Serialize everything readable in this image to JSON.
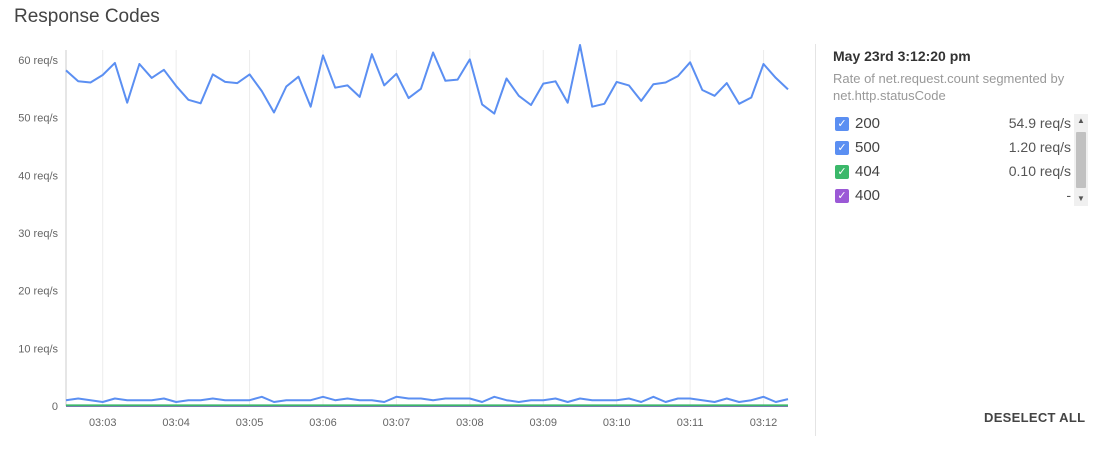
{
  "panel": {
    "title": "Response Codes",
    "deselect_label": "DESELECT ALL"
  },
  "legend": {
    "timestamp": "May 23rd 3:12:20 pm",
    "subtitle": "Rate of net.request.count segmented by net.http.statusCode",
    "items": [
      {
        "label": "200",
        "value": "54.9 req/s",
        "color": "#5b8ff2",
        "checked": true
      },
      {
        "label": "500",
        "value": "1.20 req/s",
        "color": "#5b8ff2",
        "checked": true
      },
      {
        "label": "404",
        "value": "0.10 req/s",
        "color": "#3bb86a",
        "checked": true
      },
      {
        "label": "400",
        "value": "-",
        "color": "#9b59d6",
        "checked": true
      }
    ],
    "scroll_up_icon": "triangle-up-icon",
    "scroll_down_icon": "triangle-down-icon"
  },
  "chart_data": {
    "type": "line",
    "title": "Response Codes",
    "xlabel": "",
    "ylabel": "",
    "ylim": [
      0,
      60
    ],
    "yticks": [
      0,
      10,
      20,
      30,
      40,
      50,
      60
    ],
    "ytick_labels": [
      "0",
      "10 req/s",
      "20 req/s",
      "30 req/s",
      "40 req/s",
      "50 req/s",
      "60 req/s"
    ],
    "xlim": [
      "03:02:30",
      "03:12:20"
    ],
    "xtick_labels": [
      "03:03",
      "03:04",
      "03:05",
      "03:06",
      "03:07",
      "03:08",
      "03:09",
      "03:10",
      "03:11",
      "03:12"
    ],
    "xtick_times": [
      "03:03:00",
      "03:04:00",
      "03:05:00",
      "03:06:00",
      "03:07:00",
      "03:08:00",
      "03:09:00",
      "03:10:00",
      "03:11:00",
      "03:12:00"
    ],
    "x": [
      "03:02:30",
      "03:02:40",
      "03:02:50",
      "03:03:00",
      "03:03:10",
      "03:03:20",
      "03:03:30",
      "03:03:40",
      "03:03:50",
      "03:04:00",
      "03:04:10",
      "03:04:20",
      "03:04:30",
      "03:04:40",
      "03:04:50",
      "03:05:00",
      "03:05:10",
      "03:05:20",
      "03:05:30",
      "03:05:40",
      "03:05:50",
      "03:06:00",
      "03:06:10",
      "03:06:20",
      "03:06:30",
      "03:06:40",
      "03:06:50",
      "03:07:00",
      "03:07:10",
      "03:07:20",
      "03:07:30",
      "03:07:40",
      "03:07:50",
      "03:08:00",
      "03:08:10",
      "03:08:20",
      "03:08:30",
      "03:08:40",
      "03:08:50",
      "03:09:00",
      "03:09:10",
      "03:09:20",
      "03:09:30",
      "03:09:40",
      "03:09:50",
      "03:10:00",
      "03:10:10",
      "03:10:20",
      "03:10:30",
      "03:10:40",
      "03:10:50",
      "03:11:00",
      "03:11:10",
      "03:11:20",
      "03:11:30",
      "03:11:40",
      "03:11:50",
      "03:12:00",
      "03:12:10",
      "03:12:20"
    ],
    "series": [
      {
        "name": "200",
        "color": "#5b8ff2",
        "values": [
          58.2,
          56.3,
          56.1,
          57.4,
          59.5,
          52.6,
          59.3,
          56.9,
          58.3,
          55.5,
          53.1,
          52.5,
          57.5,
          56.2,
          56.0,
          57.5,
          54.6,
          50.9,
          55.4,
          57.1,
          51.9,
          60.8,
          55.2,
          55.6,
          53.6,
          61.0,
          55.6,
          57.6,
          53.4,
          55.0,
          61.3,
          56.4,
          56.6,
          60.1,
          52.3,
          50.7,
          56.8,
          53.8,
          52.2,
          55.9,
          56.3,
          52.6,
          62.6,
          51.9,
          52.4,
          56.2,
          55.6,
          52.9,
          55.8,
          56.1,
          57.2,
          59.6,
          54.8,
          53.8,
          56.0,
          52.4,
          53.5,
          59.3,
          56.9,
          54.9
        ]
      },
      {
        "name": "500",
        "color": "#5b8ff2",
        "values": [
          1.0,
          1.3,
          1.0,
          0.7,
          1.3,
          1.0,
          1.0,
          1.0,
          1.3,
          0.7,
          1.0,
          1.0,
          1.3,
          1.0,
          1.0,
          1.0,
          1.6,
          0.7,
          1.0,
          1.0,
          1.0,
          1.6,
          1.0,
          1.3,
          1.0,
          1.0,
          0.7,
          1.6,
          1.3,
          1.3,
          1.0,
          1.3,
          1.3,
          1.3,
          0.7,
          1.6,
          1.0,
          0.7,
          1.0,
          1.0,
          1.3,
          0.7,
          1.3,
          1.0,
          1.0,
          1.0,
          1.3,
          0.7,
          1.6,
          0.7,
          1.3,
          1.3,
          1.0,
          0.7,
          1.3,
          0.7,
          1.0,
          1.6,
          0.7,
          1.2
        ]
      },
      {
        "name": "404",
        "color": "#3bb86a",
        "values": [
          0.1,
          0.1,
          0.1,
          0.1,
          0.1,
          0.1,
          0.1,
          0.1,
          0.1,
          0.1,
          0.1,
          0.1,
          0.1,
          0.1,
          0.1,
          0.1,
          0.1,
          0.1,
          0.1,
          0.1,
          0.1,
          0.1,
          0.1,
          0.1,
          0.1,
          0.1,
          0.1,
          0.1,
          0.1,
          0.1,
          0.1,
          0.1,
          0.1,
          0.1,
          0.1,
          0.1,
          0.1,
          0.1,
          0.1,
          0.1,
          0.1,
          0.1,
          0.1,
          0.1,
          0.1,
          0.1,
          0.1,
          0.1,
          0.1,
          0.1,
          0.1,
          0.1,
          0.1,
          0.1,
          0.1,
          0.1,
          0.1,
          0.1,
          0.1,
          0.1
        ]
      },
      {
        "name": "400",
        "color": "#9b59d6",
        "values": [
          0,
          0,
          0,
          0,
          0,
          0,
          0,
          0,
          0,
          0,
          0,
          0,
          0,
          0,
          0,
          0,
          0,
          0,
          0,
          0,
          0,
          0,
          0,
          0,
          0,
          0,
          0,
          0,
          0,
          0,
          0,
          0,
          0,
          0,
          0,
          0,
          0,
          0,
          0,
          0,
          0,
          0,
          0,
          0,
          0,
          0,
          0,
          0,
          0,
          0,
          0,
          0,
          0,
          0,
          0,
          0,
          0,
          0,
          0,
          0
        ]
      }
    ],
    "grid": true,
    "legend_position": "right"
  }
}
